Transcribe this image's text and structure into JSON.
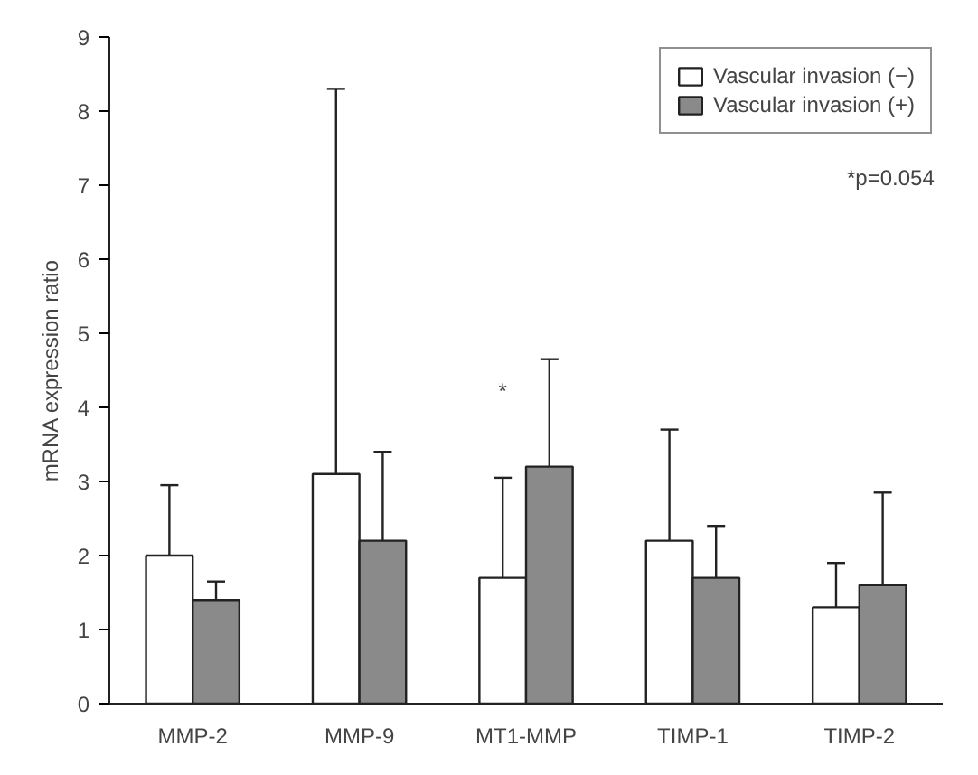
{
  "chart_data": {
    "type": "bar",
    "ylabel": "mRNA expression ratio",
    "categories": [
      "MMP-2",
      "MMP-9",
      "MT1-MMP",
      "TIMP-1",
      "TIMP-2"
    ],
    "series": [
      {
        "name": "Vascular invasion (−)",
        "color": "#ffffff",
        "values": [
          2.0,
          3.1,
          1.7,
          2.2,
          1.3
        ],
        "errors": [
          [
            2.0,
            2.95
          ],
          [
            3.1,
            8.3
          ],
          [
            1.7,
            3.05
          ],
          [
            2.2,
            3.7
          ],
          [
            1.3,
            1.9
          ]
        ]
      },
      {
        "name": "Vascular invasion (+)",
        "color": "#8a8a8a",
        "values": [
          1.4,
          2.2,
          3.2,
          1.7,
          1.6
        ],
        "errors": [
          [
            1.4,
            1.65
          ],
          [
            2.2,
            3.4
          ],
          [
            3.2,
            4.65
          ],
          [
            1.7,
            2.4
          ],
          [
            1.6,
            2.85
          ]
        ]
      }
    ],
    "ylim": [
      0,
      9
    ],
    "yticks": [
      0,
      1,
      2,
      3,
      4,
      5,
      6,
      7,
      8,
      9
    ],
    "grid": false,
    "legend": "top right",
    "annotations": [
      "*",
      "*p=0.054"
    ]
  }
}
